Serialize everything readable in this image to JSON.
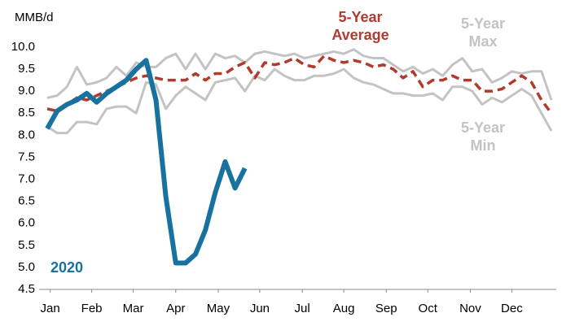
{
  "chart_data": {
    "type": "line",
    "ylabel": "MMB/d",
    "x": [
      1,
      2,
      3,
      4,
      5,
      6,
      7,
      8,
      9,
      10,
      11,
      12,
      13,
      14,
      15,
      16,
      17,
      18,
      19,
      20,
      21,
      22,
      23,
      24,
      25,
      26,
      27,
      28,
      29,
      30,
      31,
      32,
      33,
      34,
      35,
      36,
      37,
      38,
      39,
      40,
      41,
      42,
      43,
      44,
      45,
      46,
      47,
      48,
      49,
      50,
      51,
      52
    ],
    "xlim": [
      1,
      52.5
    ],
    "xticks": [
      {
        "value": 1.3,
        "label": "Jan"
      },
      {
        "value": 5.5,
        "label": "Feb"
      },
      {
        "value": 9.7,
        "label": "Mar"
      },
      {
        "value": 14,
        "label": "Apr"
      },
      {
        "value": 18.3,
        "label": "May"
      },
      {
        "value": 22.5,
        "label": "Jun"
      },
      {
        "value": 26.8,
        "label": "Jul"
      },
      {
        "value": 31,
        "label": "Aug"
      },
      {
        "value": 35.3,
        "label": "Sep"
      },
      {
        "value": 39.5,
        "label": "Oct"
      },
      {
        "value": 43.8,
        "label": "Nov"
      },
      {
        "value": 48,
        "label": "Dec"
      }
    ],
    "ylim": [
      4.5,
      10.0
    ],
    "yticks": [
      4.5,
      {
        "value": 5,
        "label": "5.0"
      },
      5.5,
      {
        "value": 6,
        "label": "6.0"
      },
      6.5,
      {
        "value": 7,
        "label": "7.0"
      },
      7.5,
      {
        "value": 8,
        "label": "8.0"
      },
      8.5,
      {
        "value": 9,
        "label": "9.0"
      },
      9.5,
      {
        "value": 10,
        "label": "10.0"
      }
    ],
    "series": [
      {
        "name": "5-Year Max",
        "color": "#c3c3c3",
        "dash": false,
        "width": 3,
        "values": [
          8.85,
          8.9,
          9.1,
          9.55,
          9.15,
          9.2,
          9.3,
          9.55,
          9.35,
          9.65,
          9.55,
          9.55,
          9.75,
          9.85,
          9.5,
          9.85,
          9.5,
          9.85,
          9.75,
          9.8,
          9.65,
          9.85,
          9.9,
          9.85,
          9.8,
          9.85,
          9.75,
          9.8,
          9.85,
          9.9,
          9.85,
          9.95,
          9.8,
          9.75,
          9.75,
          9.6,
          9.45,
          9.55,
          9.4,
          9.5,
          9.35,
          9.6,
          9.75,
          9.45,
          9.5,
          9.2,
          9.3,
          9.45,
          9.4,
          9.45,
          9.45,
          8.8
        ]
      },
      {
        "name": "5-Year Min",
        "color": "#c3c3c3",
        "dash": false,
        "width": 3,
        "values": [
          8.2,
          8.05,
          8.05,
          8.3,
          8.3,
          8.25,
          8.6,
          8.65,
          8.65,
          8.5,
          9.2,
          9.15,
          8.6,
          8.9,
          9.1,
          8.95,
          8.8,
          9.2,
          9.25,
          9.3,
          9.0,
          9.35,
          9.25,
          9.5,
          9.35,
          9.25,
          9.25,
          9.35,
          9.35,
          9.4,
          9.5,
          9.3,
          9.2,
          9.15,
          9.05,
          8.95,
          8.95,
          8.9,
          8.9,
          8.95,
          8.8,
          9.1,
          9.1,
          9.0,
          8.7,
          8.85,
          8.75,
          8.9,
          9.05,
          8.9,
          8.5,
          8.1
        ]
      },
      {
        "name": "5-Year Average",
        "color": "#b03a2e",
        "dash": true,
        "width": 3.5,
        "values": [
          8.6,
          8.55,
          8.7,
          8.85,
          8.8,
          8.9,
          9.0,
          9.1,
          9.2,
          9.3,
          9.35,
          9.3,
          9.25,
          9.25,
          9.25,
          9.4,
          9.25,
          9.4,
          9.4,
          9.55,
          9.65,
          9.3,
          9.65,
          9.6,
          9.65,
          9.75,
          9.6,
          9.55,
          9.8,
          9.7,
          9.65,
          9.7,
          9.65,
          9.55,
          9.6,
          9.5,
          9.3,
          9.45,
          9.1,
          9.25,
          9.25,
          9.35,
          9.25,
          9.25,
          9.0,
          9.0,
          9.05,
          9.2,
          9.35,
          9.2,
          8.8,
          8.5
        ]
      },
      {
        "name": "2020",
        "color": "#17729f",
        "dash": false,
        "width": 6,
        "values": [
          8.15,
          8.55,
          8.7,
          8.8,
          8.95,
          8.75,
          8.95,
          9.1,
          9.25,
          9.5,
          9.7,
          8.8,
          6.6,
          5.1,
          5.1,
          5.3,
          5.85,
          6.7,
          7.4,
          6.8,
          7.25,
          null,
          null,
          null,
          null,
          null,
          null,
          null,
          null,
          null,
          null,
          null,
          null,
          null,
          null,
          null,
          null,
          null,
          null,
          null,
          null,
          null,
          null,
          null,
          null,
          null,
          null,
          null,
          null,
          null,
          null,
          null
        ]
      }
    ]
  }
}
